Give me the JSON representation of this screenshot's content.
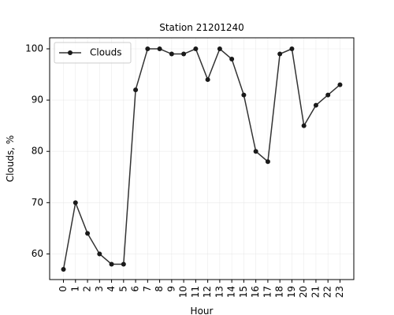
{
  "chart_data": {
    "type": "line",
    "title": "Station 21201240",
    "xlabel": "Hour",
    "ylabel": "Clouds, %",
    "x": [
      0,
      1,
      2,
      3,
      4,
      5,
      6,
      7,
      8,
      9,
      10,
      11,
      12,
      13,
      14,
      15,
      16,
      17,
      18,
      19,
      20,
      21,
      22,
      23
    ],
    "x_tick_labels": [
      "0",
      "1",
      "2",
      "3",
      "4",
      "5",
      "6",
      "7",
      "8",
      "9",
      "10",
      "11",
      "12",
      "13",
      "14",
      "15",
      "16",
      "17",
      "18",
      "19",
      "20",
      "21",
      "22",
      "23"
    ],
    "series": [
      {
        "name": "Clouds",
        "values": [
          57,
          70,
          64,
          60,
          58,
          58,
          92,
          100,
          100,
          99,
          99,
          100,
          94,
          100,
          98,
          91,
          80,
          78,
          99,
          100,
          85,
          89,
          91,
          93
        ],
        "color": "#333333"
      }
    ],
    "y_ticks": [
      60,
      70,
      80,
      90,
      100
    ],
    "y_tick_labels": [
      "60",
      "70",
      "80",
      "90",
      "100"
    ],
    "xlim": [
      -1.15,
      24.15
    ],
    "ylim": [
      55.0,
      102.15
    ],
    "grid": true,
    "legend_position": "upper-left"
  }
}
